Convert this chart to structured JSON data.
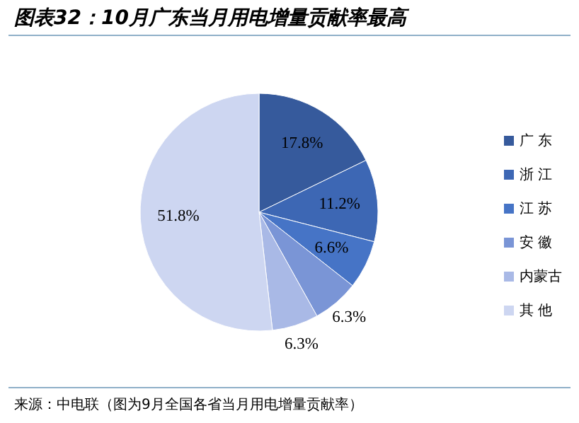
{
  "chart_data": {
    "type": "pie",
    "title": "图表32：10月广东当月用电增量贡献率最高",
    "categories": [
      "广 东",
      "浙 江",
      "江 苏",
      "安 徽",
      "内蒙古",
      "其 他"
    ],
    "values": [
      17.8,
      11.2,
      6.6,
      6.3,
      6.3,
      51.8
    ],
    "colors": [
      "#365a9c",
      "#3d67b4",
      "#4674c6",
      "#7a95d6",
      "#a9b9e6",
      "#cdd6f1"
    ],
    "value_labels": [
      "17.8%",
      "11.2%",
      "6.6%",
      "6.3%",
      "6.3%",
      "51.8%"
    ],
    "legend": "right",
    "annotations": [
      "来源：中电联（图为9月全国各省当月用电增量贡献率）"
    ]
  }
}
